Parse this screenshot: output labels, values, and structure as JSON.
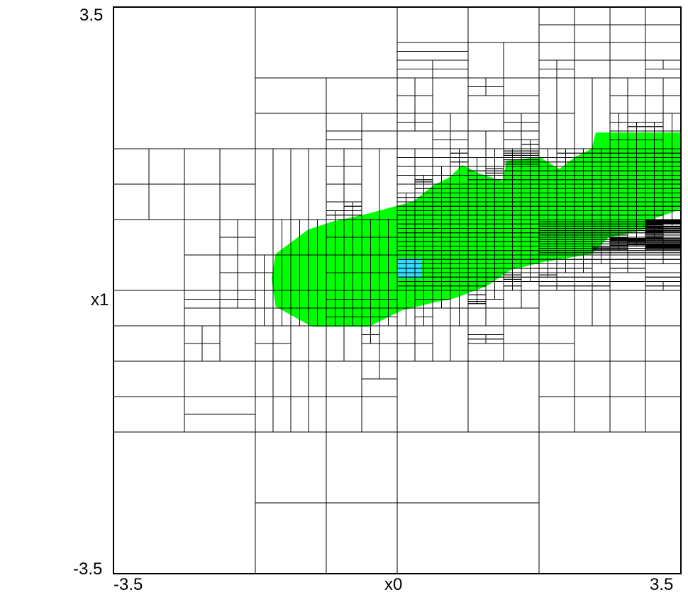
{
  "chart_data": {
    "type": "heatmap",
    "title": "",
    "xlabel": "x0",
    "ylabel": "x1",
    "xlim": [
      -3.5,
      3.5
    ],
    "ylim": [
      -3.5,
      3.5
    ],
    "x_tick_labels": [
      "-3.5",
      "3.5"
    ],
    "y_tick_labels": [
      "3.5",
      "-3.5"
    ],
    "description": "Adaptive quadtree partition of the [-3.5, 3.5] x [-3.5, 3.5] domain; cells are refined near a diagonal band. Cells inside the band are filled green; a small central patch near (0.1, 0.3) is filled cyan.",
    "colors": {
      "band": "#00ff00",
      "center": "#33ddff",
      "grid_line": "#000000",
      "background": "#ffffff"
    },
    "band_polygon": [
      [
        -1.55,
        0.15
      ],
      [
        -1.5,
        0.45
      ],
      [
        -1.3,
        0.6
      ],
      [
        -1.1,
        0.75
      ],
      [
        -0.8,
        0.85
      ],
      [
        -0.35,
        0.95
      ],
      [
        0.2,
        1.1
      ],
      [
        0.45,
        1.3
      ],
      [
        0.65,
        1.4
      ],
      [
        0.8,
        1.55
      ],
      [
        1.0,
        1.45
      ],
      [
        1.3,
        1.35
      ],
      [
        1.35,
        1.6
      ],
      [
        1.75,
        1.65
      ],
      [
        2.0,
        1.5
      ],
      [
        2.2,
        1.65
      ],
      [
        2.4,
        1.75
      ],
      [
        2.45,
        1.95
      ],
      [
        3.5,
        1.95
      ],
      [
        3.5,
        1.0
      ],
      [
        3.2,
        0.9
      ],
      [
        3.05,
        0.75
      ],
      [
        2.6,
        0.65
      ],
      [
        2.4,
        0.45
      ],
      [
        1.8,
        0.35
      ],
      [
        1.4,
        0.25
      ],
      [
        1.1,
        0.05
      ],
      [
        0.7,
        -0.1
      ],
      [
        0.45,
        -0.15
      ],
      [
        0.05,
        -0.25
      ],
      [
        -0.35,
        -0.45
      ],
      [
        -1.05,
        -0.45
      ],
      [
        -1.5,
        -0.2
      ]
    ],
    "center_patch": {
      "x": [
        0.0,
        0.3
      ],
      "y": [
        0.15,
        0.4
      ]
    }
  }
}
